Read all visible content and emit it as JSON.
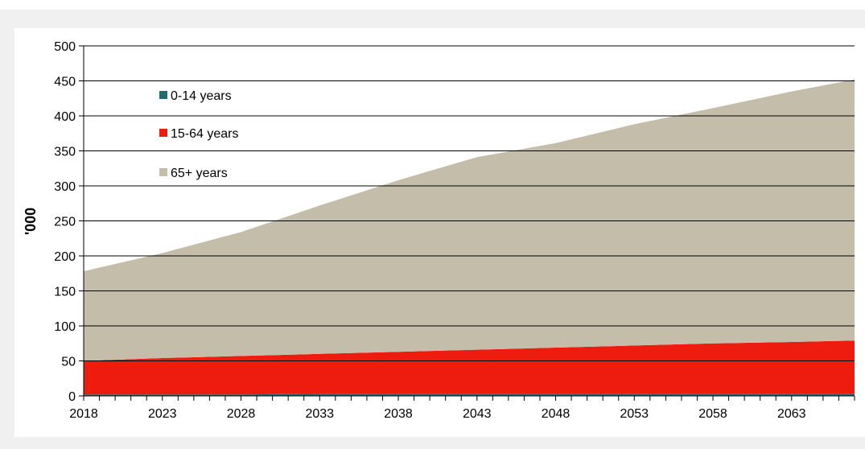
{
  "chart_data": {
    "type": "area",
    "stacked": true,
    "title": "",
    "xlabel": "",
    "ylabel": "'000",
    "xlim": [
      2018,
      2067
    ],
    "ylim": [
      0,
      500
    ],
    "y_ticks": [
      0,
      50,
      100,
      150,
      200,
      250,
      300,
      350,
      400,
      450,
      500
    ],
    "x_tick_labels": [
      "2018",
      "2023",
      "2028",
      "2033",
      "2038",
      "2043",
      "2048",
      "2053",
      "2058",
      "2063"
    ],
    "grid": "horizontal",
    "legend_position": "top-left",
    "x": [
      2018,
      2023,
      2028,
      2033,
      2038,
      2043,
      2048,
      2053,
      2058,
      2063,
      2067
    ],
    "series": [
      {
        "name": "0-14 years",
        "color": "#1f6b73",
        "values": [
          2,
          2,
          2,
          3,
          3,
          3,
          3,
          3,
          3,
          3,
          3
        ]
      },
      {
        "name": "15-64 years",
        "color": "#ee1c0e",
        "values": [
          48,
          52,
          55,
          57,
          60,
          63,
          66,
          69,
          72,
          74,
          76
        ]
      },
      {
        "name": "65+ years",
        "color": "#c4bdaa",
        "values": [
          128,
          150,
          177,
          212,
          245,
          275,
          292,
          316,
          336,
          358,
          373
        ]
      }
    ]
  }
}
